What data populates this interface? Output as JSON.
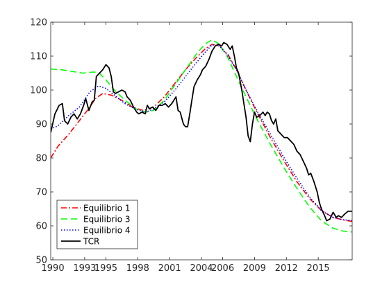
{
  "chart_data": {
    "type": "line",
    "title": "",
    "xlabel": "",
    "ylabel": "",
    "xlim": [
      1989.8,
      2018.2
    ],
    "ylim": [
      50,
      120
    ],
    "grid": false,
    "legend_position": "bottom-left",
    "xticks": [
      1990,
      1993,
      1995,
      1998,
      2001,
      2004,
      2006,
      2009,
      2012,
      2015
    ],
    "xtick_labels": [
      "1990",
      "1993",
      "1995",
      "1998",
      "2001",
      "2004",
      "2006",
      "2009",
      "2012",
      "2015"
    ],
    "yticks": [
      50,
      60,
      70,
      80,
      90,
      100,
      110,
      120
    ],
    "ytick_labels": [
      "50",
      "60",
      "70",
      "80",
      "90",
      "100",
      "110",
      "120"
    ],
    "series": [
      {
        "name": "Equilibrio 1",
        "color": "#ff0000",
        "style": "dashdot",
        "points": [
          [
            1989.8,
            80
          ],
          [
            1990.5,
            83.5
          ],
          [
            1991.5,
            87
          ],
          [
            1992.5,
            91
          ],
          [
            1993.5,
            95
          ],
          [
            1994,
            97.5
          ],
          [
            1994.7,
            99
          ],
          [
            1995.5,
            98.5
          ],
          [
            1996.5,
            97
          ],
          [
            1997.5,
            95
          ],
          [
            1998.5,
            94
          ],
          [
            1999.5,
            95
          ],
          [
            2000.5,
            98
          ],
          [
            2001.5,
            102
          ],
          [
            2002.5,
            106
          ],
          [
            2003.5,
            109.5
          ],
          [
            2004.3,
            112
          ],
          [
            2005,
            113.5
          ],
          [
            2005.7,
            113
          ],
          [
            2006.5,
            110.5
          ],
          [
            2007.3,
            106
          ],
          [
            2008.2,
            100
          ],
          [
            2009.3,
            93
          ],
          [
            2010.5,
            86
          ],
          [
            2011.8,
            79
          ],
          [
            2013,
            73
          ],
          [
            2014.2,
            68
          ],
          [
            2015.3,
            64.5
          ],
          [
            2016.4,
            62.5
          ],
          [
            2017.3,
            61.8
          ],
          [
            2018.2,
            61.3
          ]
        ]
      },
      {
        "name": "Equilibrio 3",
        "color": "#00ff00",
        "style": "dashed",
        "points": [
          [
            1989.8,
            106.2
          ],
          [
            1990.8,
            106
          ],
          [
            1991.8,
            105.5
          ],
          [
            1992.8,
            105
          ],
          [
            1993.8,
            105.3
          ],
          [
            1994.3,
            105.2
          ],
          [
            1995,
            103
          ],
          [
            1995.8,
            100
          ],
          [
            1996.8,
            97
          ],
          [
            1997.8,
            94.5
          ],
          [
            1998.8,
            93.5
          ],
          [
            1999.5,
            94
          ],
          [
            2000.5,
            97
          ],
          [
            2001.5,
            101.5
          ],
          [
            2002.5,
            106
          ],
          [
            2003.5,
            110.5
          ],
          [
            2004.3,
            113.5
          ],
          [
            2005,
            114.8
          ],
          [
            2005.7,
            113.5
          ],
          [
            2006.5,
            109.5
          ],
          [
            2007.3,
            104
          ],
          [
            2008.2,
            98
          ],
          [
            2009.3,
            91
          ],
          [
            2010.5,
            84
          ],
          [
            2011.8,
            77
          ],
          [
            2013,
            71
          ],
          [
            2014.2,
            65.5
          ],
          [
            2015.3,
            61.5
          ],
          [
            2016.4,
            59.3
          ],
          [
            2017.3,
            58.5
          ],
          [
            2018.2,
            58.2
          ]
        ]
      },
      {
        "name": "Equilibrio 4",
        "color": "#0000ff",
        "style": "dotted",
        "points": [
          [
            1989.8,
            88.5
          ],
          [
            1990.5,
            89.5
          ],
          [
            1991.5,
            92.5
          ],
          [
            1992.5,
            95
          ],
          [
            1993.5,
            99.5
          ],
          [
            1994.3,
            101.2
          ],
          [
            1995,
            100.5
          ],
          [
            1995.8,
            98.5
          ],
          [
            1996.8,
            96
          ],
          [
            1997.8,
            94.3
          ],
          [
            1998.8,
            93.5
          ],
          [
            1999.5,
            94.5
          ],
          [
            2000.5,
            96.5
          ],
          [
            2001.5,
            100
          ],
          [
            2002.5,
            104
          ],
          [
            2003.5,
            108
          ],
          [
            2004.3,
            111
          ],
          [
            2005,
            113.3
          ],
          [
            2005.7,
            113
          ],
          [
            2006.5,
            110
          ],
          [
            2007.3,
            106
          ],
          [
            2008.2,
            100
          ],
          [
            2009.3,
            93.5
          ],
          [
            2010.5,
            87
          ],
          [
            2011.8,
            80
          ],
          [
            2013,
            74
          ],
          [
            2014.2,
            68.5
          ],
          [
            2015.3,
            64.5
          ],
          [
            2016.4,
            62.5
          ],
          [
            2017.3,
            61.8
          ],
          [
            2018.2,
            61.6
          ]
        ]
      },
      {
        "name": "TCR",
        "color": "#000000",
        "style": "solid",
        "points": [
          [
            1989.8,
            87.5
          ],
          [
            1990.2,
            93
          ],
          [
            1990.6,
            95.5
          ],
          [
            1990.9,
            96
          ],
          [
            1991.1,
            91
          ],
          [
            1991.4,
            90
          ],
          [
            1991.7,
            92
          ],
          [
            1992,
            93
          ],
          [
            1992.3,
            91.5
          ],
          [
            1992.6,
            93
          ],
          [
            1992.9,
            95.5
          ],
          [
            1993.1,
            97.5
          ],
          [
            1993.4,
            94
          ],
          [
            1993.7,
            96.5
          ],
          [
            1993.9,
            97
          ],
          [
            1994.1,
            104
          ],
          [
            1994.4,
            105
          ],
          [
            1994.7,
            106
          ],
          [
            1995,
            107.5
          ],
          [
            1995.3,
            106.5
          ],
          [
            1995.5,
            104
          ],
          [
            1995.7,
            99.5
          ],
          [
            1995.9,
            99
          ],
          [
            1996.2,
            99.5
          ],
          [
            1996.5,
            100
          ],
          [
            1996.8,
            99.5
          ],
          [
            1997,
            98
          ],
          [
            1997.3,
            97
          ],
          [
            1997.6,
            95
          ],
          [
            1997.9,
            93.5
          ],
          [
            1998.1,
            93
          ],
          [
            1998.4,
            93.5
          ],
          [
            1998.7,
            93
          ],
          [
            1998.9,
            95.5
          ],
          [
            1999.1,
            94.5
          ],
          [
            1999.4,
            95
          ],
          [
            1999.7,
            94
          ],
          [
            2000,
            95.5
          ],
          [
            2000.3,
            95.5
          ],
          [
            2000.6,
            96
          ],
          [
            2000.9,
            95
          ],
          [
            2001.2,
            96
          ],
          [
            2001.4,
            97
          ],
          [
            2001.6,
            98
          ],
          [
            2001.8,
            94
          ],
          [
            2002,
            93.5
          ],
          [
            2002.3,
            90
          ],
          [
            2002.5,
            89.2
          ],
          [
            2002.7,
            89.2
          ],
          [
            2002.9,
            93
          ],
          [
            2003.1,
            97
          ],
          [
            2003.3,
            101
          ],
          [
            2003.6,
            103
          ],
          [
            2003.9,
            104.5
          ],
          [
            2004.1,
            106
          ],
          [
            2004.4,
            107
          ],
          [
            2004.7,
            109
          ],
          [
            2005,
            111.5
          ],
          [
            2005.3,
            113
          ],
          [
            2005.6,
            113.5
          ],
          [
            2005.9,
            113
          ],
          [
            2006.1,
            114
          ],
          [
            2006.4,
            113.5
          ],
          [
            2006.7,
            112
          ],
          [
            2006.9,
            113
          ],
          [
            2007.1,
            110
          ],
          [
            2007.3,
            106.5
          ],
          [
            2007.5,
            105
          ],
          [
            2007.8,
            100
          ],
          [
            2008,
            96
          ],
          [
            2008.2,
            92
          ],
          [
            2008.4,
            86.5
          ],
          [
            2008.6,
            84.8
          ],
          [
            2008.8,
            90
          ],
          [
            2009,
            93.5
          ],
          [
            2009.2,
            92
          ],
          [
            2009.5,
            92.5
          ],
          [
            2009.8,
            93.5
          ],
          [
            2010,
            92.5
          ],
          [
            2010.2,
            93.5
          ],
          [
            2010.4,
            93
          ],
          [
            2010.6,
            91
          ],
          [
            2010.8,
            90
          ],
          [
            2011,
            91.5
          ],
          [
            2011.2,
            88
          ],
          [
            2011.5,
            87
          ],
          [
            2011.8,
            86
          ],
          [
            2012.1,
            86
          ],
          [
            2012.4,
            85
          ],
          [
            2012.7,
            84
          ],
          [
            2013,
            82
          ],
          [
            2013.3,
            81
          ],
          [
            2013.6,
            79
          ],
          [
            2013.9,
            77
          ],
          [
            2014.1,
            75
          ],
          [
            2014.3,
            75.5
          ],
          [
            2014.6,
            73
          ],
          [
            2014.9,
            70
          ],
          [
            2015.1,
            67
          ],
          [
            2015.3,
            65
          ],
          [
            2015.6,
            63
          ],
          [
            2015.8,
            61.5
          ],
          [
            2016.1,
            62
          ],
          [
            2016.4,
            64
          ],
          [
            2016.7,
            62.5
          ],
          [
            2016.9,
            63
          ],
          [
            2017.2,
            62.5
          ],
          [
            2017.5,
            63.5
          ],
          [
            2017.8,
            64.3
          ],
          [
            2018.2,
            64.3
          ]
        ]
      }
    ]
  }
}
